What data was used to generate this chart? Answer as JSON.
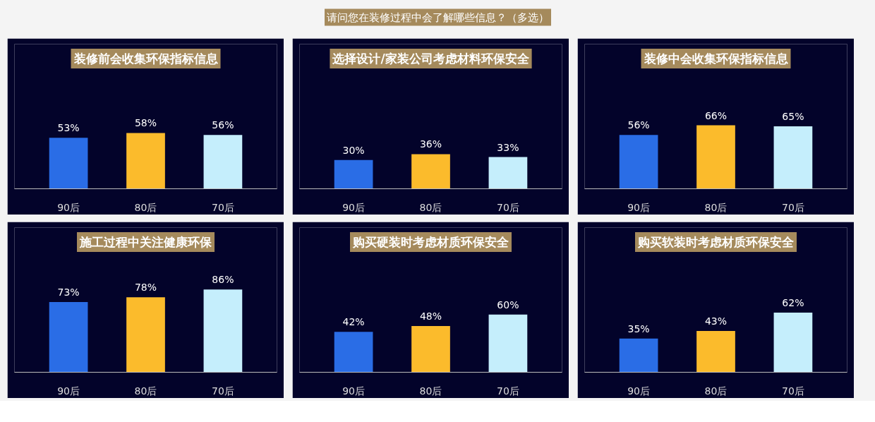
{
  "chart_data": [
    {
      "type": "other",
      "title": "请问您在装修过程中会了解哪些信息？（多选）"
    },
    {
      "type": "bar",
      "title": "装修前会收集环保指标信息",
      "categories": [
        "90后",
        "80后",
        "70后"
      ],
      "values": [
        53,
        58,
        56
      ],
      "value_labels": [
        "53%",
        "58%",
        "56%"
      ],
      "colors": [
        "#2a6de6",
        "#fbbb2c",
        "#c5eefc"
      ],
      "tick_labels": "x"
    },
    {
      "type": "bar",
      "title": "选择设计/家装公司考虑材料环保安全",
      "categories": [
        "90后",
        "80后",
        "70后"
      ],
      "values": [
        30,
        36,
        33
      ],
      "value_labels": [
        "30%",
        "36%",
        "33%"
      ],
      "colors": [
        "#2a6de6",
        "#fbbb2c",
        "#c5eefc"
      ],
      "tick_labels": "x"
    },
    {
      "type": "bar",
      "title": "装修中会收集环保指标信息",
      "categories": [
        "90后",
        "80后",
        "70后"
      ],
      "values": [
        56,
        66,
        65
      ],
      "value_labels": [
        "56%",
        "66%",
        "65%"
      ],
      "colors": [
        "#2a6de6",
        "#fbbb2c",
        "#c5eefc"
      ],
      "tick_labels": "x"
    },
    {
      "type": "bar",
      "title": "施工过程中关注健康环保",
      "categories": [
        "90后",
        "80后",
        "70后"
      ],
      "values": [
        73,
        78,
        86
      ],
      "value_labels": [
        "73%",
        "78%",
        "86%"
      ],
      "colors": [
        "#2a6de6",
        "#fbbb2c",
        "#c5eefc"
      ],
      "tick_labels": "x"
    },
    {
      "type": "bar",
      "title": "购买硬装时考虑材质环保安全",
      "categories": [
        "90后",
        "80后",
        "70后"
      ],
      "values": [
        42,
        48,
        60
      ],
      "value_labels": [
        "42%",
        "48%",
        "60%"
      ],
      "colors": [
        "#2a6de6",
        "#fbbb2c",
        "#c5eefc"
      ],
      "tick_labels": "x"
    },
    {
      "type": "bar",
      "title": "购买软装时考虑材质环保安全",
      "categories": [
        "90后",
        "80后",
        "70后"
      ],
      "values": [
        35,
        43,
        62
      ],
      "value_labels": [
        "35%",
        "43%",
        "62%"
      ],
      "colors": [
        "#2a6de6",
        "#fbbb2c",
        "#c5eefc"
      ],
      "tick_labels": "x"
    }
  ]
}
